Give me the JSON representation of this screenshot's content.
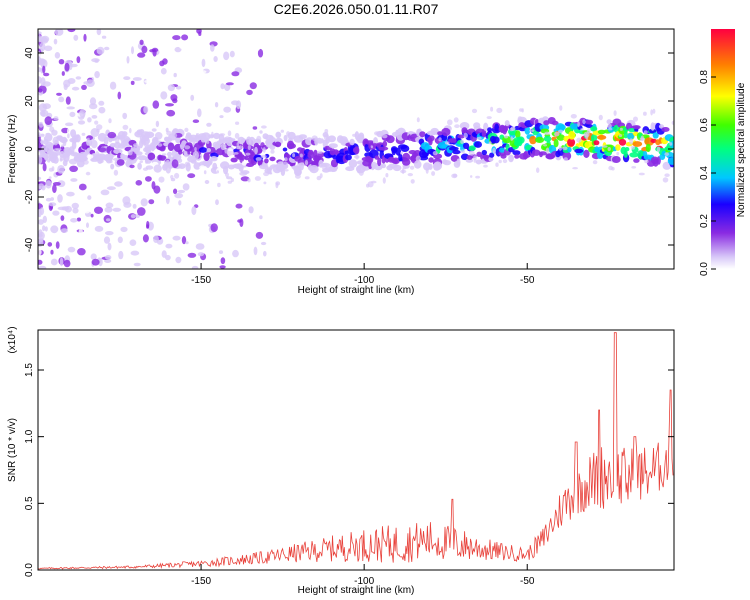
{
  "title": "C2E6.2026.050.01.11.R07",
  "chart_data": [
    {
      "type": "heatmap",
      "name": "spectrogram",
      "xlabel": "Height of straight line (km)",
      "ylabel": "Frequency (Hz)",
      "xlim": [
        -200,
        -5
      ],
      "ylim": [
        -50,
        50
      ],
      "xticks": [
        -150,
        -100,
        -50
      ],
      "yticks": [
        -40,
        -20,
        0,
        20,
        40
      ],
      "colorbar": {
        "label": "Normalized spectral amplitude",
        "range": [
          0.0,
          1.0
        ],
        "ticks": [
          "0.0",
          "0.2",
          "0.4",
          "0.6",
          "0.8"
        ],
        "colors": [
          "#ffffff",
          "#d8c8f8",
          "#8a2be2",
          "#1a00ff",
          "#00c8ff",
          "#00ff80",
          "#40ff00",
          "#ffff00",
          "#ff8000",
          "#ff0040"
        ]
      },
      "ridge": {
        "description": "energy band near 0 Hz, rising slightly toward 5 Hz at high heights",
        "x": [
          -195,
          -170,
          -150,
          -130,
          -110,
          -90,
          -75,
          -60,
          -50,
          -40,
          -30,
          -20,
          -10,
          -5
        ],
        "freq": [
          0,
          0,
          -1,
          -2,
          -2,
          -1,
          1,
          3,
          4,
          4,
          4,
          3,
          2,
          0
        ],
        "amplitude": [
          0.15,
          0.2,
          0.25,
          0.3,
          0.3,
          0.35,
          0.45,
          0.55,
          0.7,
          0.85,
          0.9,
          0.95,
          0.9,
          0.8
        ]
      }
    },
    {
      "type": "line",
      "name": "snr",
      "xlabel": "Height of straight line (km)",
      "ylabel": "SNR (10 * v/v)",
      "scale_label": "(x10⁴)",
      "xlim": [
        -200,
        -5
      ],
      "ylim": [
        0,
        1.8
      ],
      "xticks": [
        -150,
        -100,
        -50
      ],
      "yticks": [
        "0.0",
        "0.5",
        "1.0",
        "1.5"
      ],
      "color": "#e8413a",
      "envelope": {
        "x": [
          -200,
          -170,
          -150,
          -130,
          -115,
          -100,
          -90,
          -80,
          -70,
          -60,
          -50,
          -45,
          -40,
          -35,
          -30,
          -25,
          -20,
          -15,
          -10,
          -5
        ],
        "base": [
          0.01,
          0.02,
          0.04,
          0.08,
          0.12,
          0.15,
          0.15,
          0.18,
          0.15,
          0.12,
          0.1,
          0.2,
          0.4,
          0.55,
          0.6,
          0.65,
          0.6,
          0.65,
          0.7,
          0.8
        ],
        "amp": [
          0.01,
          0.02,
          0.05,
          0.1,
          0.17,
          0.25,
          0.3,
          0.3,
          0.25,
          0.15,
          0.1,
          0.2,
          0.3,
          0.4,
          0.45,
          0.55,
          0.5,
          0.45,
          0.4,
          0.4
        ]
      },
      "peaks": [
        {
          "x": -73,
          "y": 0.53
        },
        {
          "x": -35,
          "y": 0.96
        },
        {
          "x": -28,
          "y": 1.2
        },
        {
          "x": -23,
          "y": 1.78
        },
        {
          "x": -17,
          "y": 1.0
        },
        {
          "x": -6,
          "y": 1.35
        }
      ]
    }
  ]
}
